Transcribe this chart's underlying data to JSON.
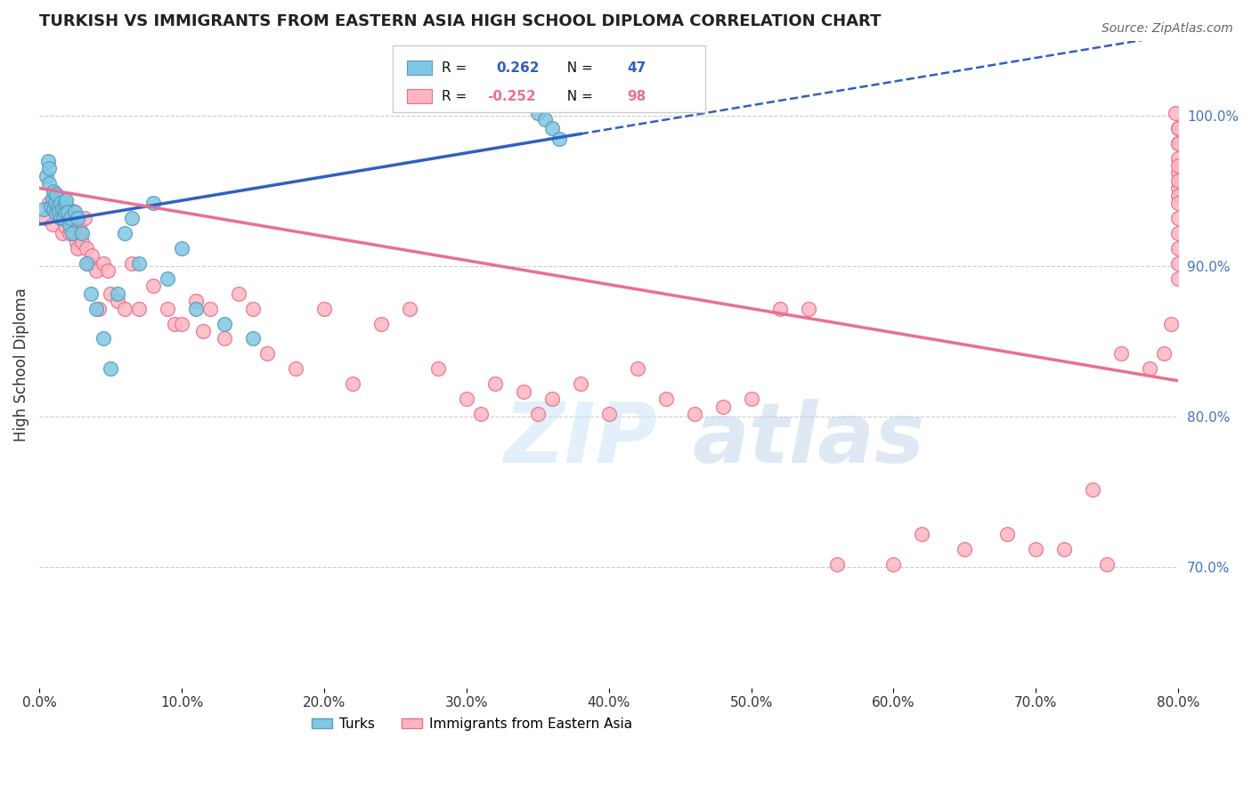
{
  "title": "TURKISH VS IMMIGRANTS FROM EASTERN ASIA HIGH SCHOOL DIPLOMA CORRELATION CHART",
  "source": "Source: ZipAtlas.com",
  "ylabel": "High School Diploma",
  "turks_color": "#7ec8e3",
  "turks_edge_color": "#5b9abf",
  "ea_color": "#ffb6c1",
  "ea_edge_color": "#e87090",
  "line_blue": "#3060c0",
  "line_pink": "#e87090",
  "xmin": 0.0,
  "xmax": 0.8,
  "ymin": 0.62,
  "ymax": 1.05,
  "turks_x": [
    0.003,
    0.005,
    0.006,
    0.007,
    0.007,
    0.008,
    0.009,
    0.01,
    0.01,
    0.011,
    0.012,
    0.012,
    0.013,
    0.014,
    0.015,
    0.015,
    0.016,
    0.017,
    0.018,
    0.018,
    0.019,
    0.02,
    0.021,
    0.022,
    0.023,
    0.025,
    0.027,
    0.03,
    0.033,
    0.036,
    0.04,
    0.045,
    0.05,
    0.055,
    0.06,
    0.065,
    0.07,
    0.08,
    0.09,
    0.1,
    0.11,
    0.13,
    0.15,
    0.35,
    0.355,
    0.36,
    0.365
  ],
  "turks_y": [
    0.938,
    0.96,
    0.97,
    0.955,
    0.965,
    0.94,
    0.945,
    0.95,
    0.938,
    0.942,
    0.948,
    0.935,
    0.94,
    0.936,
    0.932,
    0.942,
    0.938,
    0.932,
    0.936,
    0.942,
    0.944,
    0.936,
    0.928,
    0.932,
    0.922,
    0.936,
    0.932,
    0.922,
    0.902,
    0.882,
    0.872,
    0.852,
    0.832,
    0.882,
    0.922,
    0.932,
    0.902,
    0.942,
    0.892,
    0.912,
    0.872,
    0.862,
    0.852,
    1.002,
    0.998,
    0.992,
    0.985
  ],
  "ea_x": [
    0.004,
    0.007,
    0.009,
    0.011,
    0.012,
    0.013,
    0.015,
    0.016,
    0.017,
    0.018,
    0.019,
    0.02,
    0.021,
    0.022,
    0.022,
    0.023,
    0.024,
    0.025,
    0.026,
    0.027,
    0.028,
    0.029,
    0.03,
    0.032,
    0.033,
    0.035,
    0.037,
    0.04,
    0.042,
    0.045,
    0.048,
    0.05,
    0.055,
    0.06,
    0.065,
    0.07,
    0.08,
    0.09,
    0.095,
    0.1,
    0.11,
    0.115,
    0.12,
    0.13,
    0.14,
    0.15,
    0.16,
    0.18,
    0.2,
    0.22,
    0.24,
    0.26,
    0.28,
    0.3,
    0.31,
    0.32,
    0.34,
    0.35,
    0.36,
    0.38,
    0.4,
    0.42,
    0.44,
    0.46,
    0.48,
    0.5,
    0.52,
    0.54,
    0.56,
    0.6,
    0.62,
    0.65,
    0.68,
    0.7,
    0.72,
    0.74,
    0.75,
    0.76,
    0.78,
    0.79,
    0.795,
    0.798,
    0.8,
    0.8,
    0.8,
    0.8,
    0.8,
    0.8,
    0.8,
    0.8,
    0.8,
    0.8,
    0.8,
    0.8,
    0.8,
    0.8,
    0.8,
    0.8
  ],
  "ea_y": [
    0.932,
    0.942,
    0.928,
    0.936,
    0.946,
    0.942,
    0.938,
    0.922,
    0.932,
    0.927,
    0.932,
    0.937,
    0.922,
    0.932,
    0.925,
    0.932,
    0.937,
    0.922,
    0.916,
    0.912,
    0.927,
    0.922,
    0.916,
    0.932,
    0.912,
    0.902,
    0.907,
    0.897,
    0.872,
    0.902,
    0.897,
    0.882,
    0.877,
    0.872,
    0.902,
    0.872,
    0.887,
    0.872,
    0.862,
    0.862,
    0.877,
    0.857,
    0.872,
    0.852,
    0.882,
    0.872,
    0.842,
    0.832,
    0.872,
    0.822,
    0.862,
    0.872,
    0.832,
    0.812,
    0.802,
    0.822,
    0.817,
    0.802,
    0.812,
    0.822,
    0.802,
    0.832,
    0.812,
    0.802,
    0.807,
    0.812,
    0.872,
    0.872,
    0.702,
    0.702,
    0.722,
    0.712,
    0.722,
    0.712,
    0.712,
    0.752,
    0.702,
    0.842,
    0.832,
    0.842,
    0.862,
    1.002,
    0.952,
    0.992,
    0.982,
    0.962,
    0.972,
    0.992,
    0.982,
    0.967,
    0.947,
    0.932,
    0.957,
    0.942,
    0.922,
    0.912,
    0.902,
    0.892
  ]
}
